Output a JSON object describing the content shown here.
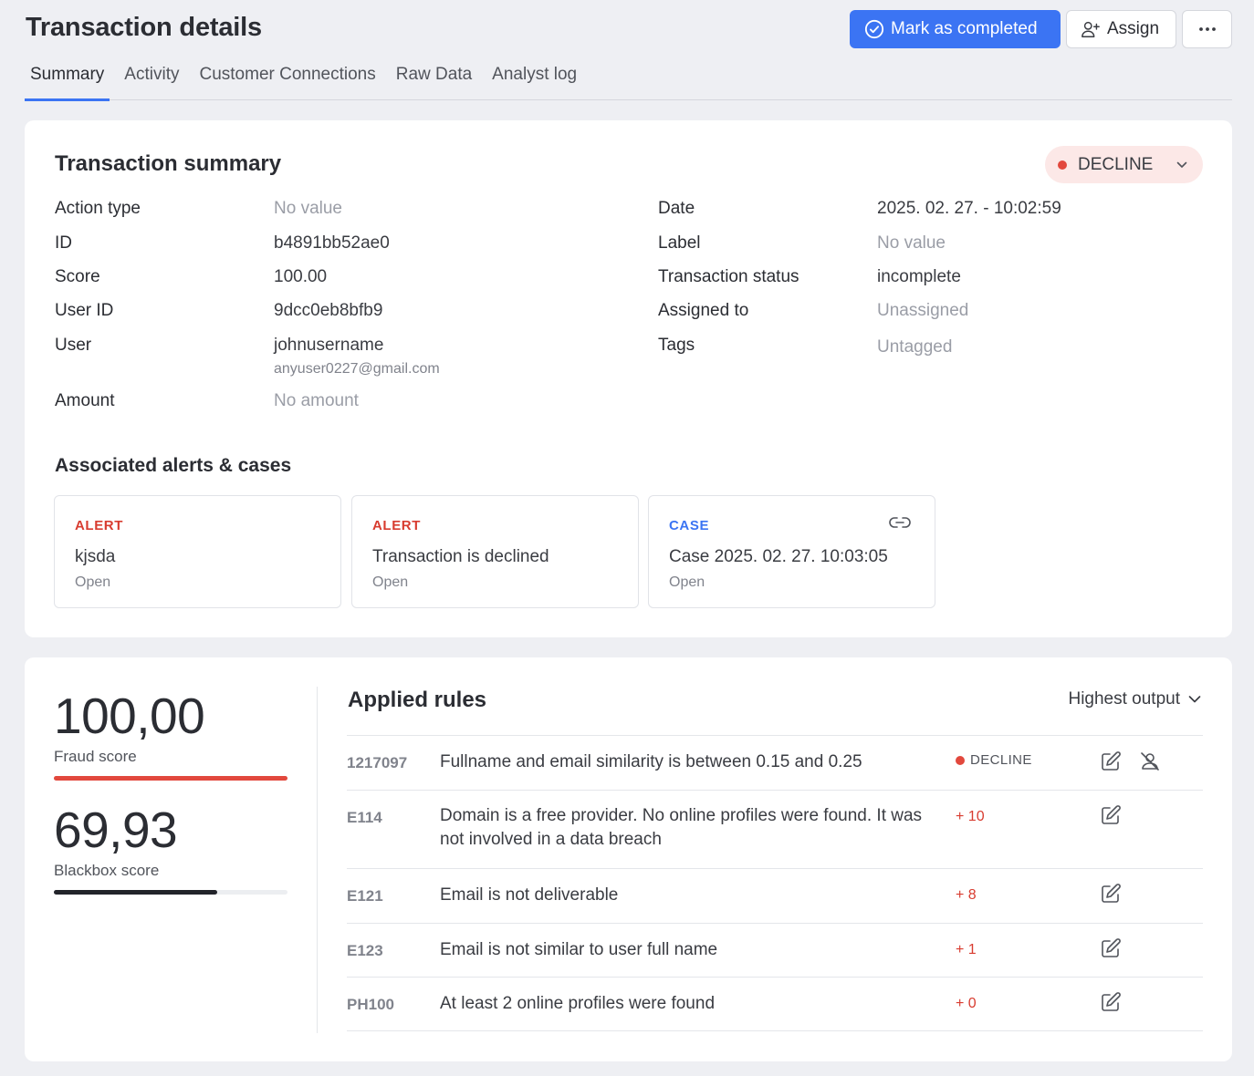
{
  "header": {
    "title": "Transaction details",
    "mark_completed_label": "Mark as completed",
    "assign_label": "Assign"
  },
  "tabs": [
    {
      "label": "Summary",
      "active": true
    },
    {
      "label": "Activity"
    },
    {
      "label": "Customer Connections"
    },
    {
      "label": "Raw Data"
    },
    {
      "label": "Analyst log"
    }
  ],
  "summary": {
    "title": "Transaction summary",
    "status": "DECLINE",
    "left": [
      {
        "label": "Action type",
        "value": "No value"
      },
      {
        "label": "ID",
        "value": "b4891bb52ae0"
      },
      {
        "label": "Score",
        "value": "100.00"
      },
      {
        "label": "User ID",
        "value": "9dcc0eb8bfb9"
      },
      {
        "label": "User",
        "value": "johnusername",
        "sub": "anyuser0227@gmail.com"
      },
      {
        "label": "Amount",
        "value": "No amount"
      }
    ],
    "right": [
      {
        "label": "Date",
        "value": "2025. 02. 27. - 10:02:59"
      },
      {
        "label": "Label",
        "value": "No value"
      },
      {
        "label": "Transaction status",
        "value": "incomplete"
      },
      {
        "label": "Assigned to",
        "value": "Unassigned"
      },
      {
        "label": "Tags",
        "value": "Untagged"
      }
    ]
  },
  "associated": {
    "title": "Associated alerts & cases",
    "items": [
      {
        "type": "ALERT",
        "name": "kjsda",
        "status": "Open"
      },
      {
        "type": "ALERT",
        "name": "Transaction is declined",
        "status": "Open"
      },
      {
        "type": "CASE",
        "name": "Case 2025. 02. 27. 10:03:05",
        "status": "Open"
      }
    ]
  },
  "scores": {
    "fraud": {
      "value": "100,00",
      "label": "Fraud score",
      "fraction": 1.0,
      "color": "#e2483d"
    },
    "blackbox": {
      "value": "69,93",
      "label": "Blackbox score",
      "fraction": 0.6993,
      "color": "#22242a"
    }
  },
  "rules": {
    "title": "Applied rules",
    "sort_label": "Highest output",
    "items": [
      {
        "id": "1217097",
        "description": "Fullname and email similarity is between 0.15 and 0.25",
        "output": "DECLINE"
      },
      {
        "id": "E114",
        "description": "Domain is a free provider. No online profiles were found. It was not involved in a data breach",
        "output": "+ 10"
      },
      {
        "id": "E121",
        "description": "Email is not deliverable",
        "output": "+ 8"
      },
      {
        "id": "E123",
        "description": "Email is not similar to user full name",
        "output": "+ 1"
      },
      {
        "id": "PH100",
        "description": "At least 2 online profiles were found",
        "output": "+ 0"
      }
    ]
  },
  "icons": {
    "check_circle": "check-circle-icon",
    "user_plus": "user-plus-icon",
    "more": "more-horizontal-icon",
    "chevron": "chevron-down-icon",
    "link": "link-icon",
    "edit": "edit-icon",
    "user_off": "user-off-icon"
  },
  "colors": {
    "accent": "#3b74f3",
    "decline": "#e2483d",
    "decline_bg": "#fce8e7"
  }
}
